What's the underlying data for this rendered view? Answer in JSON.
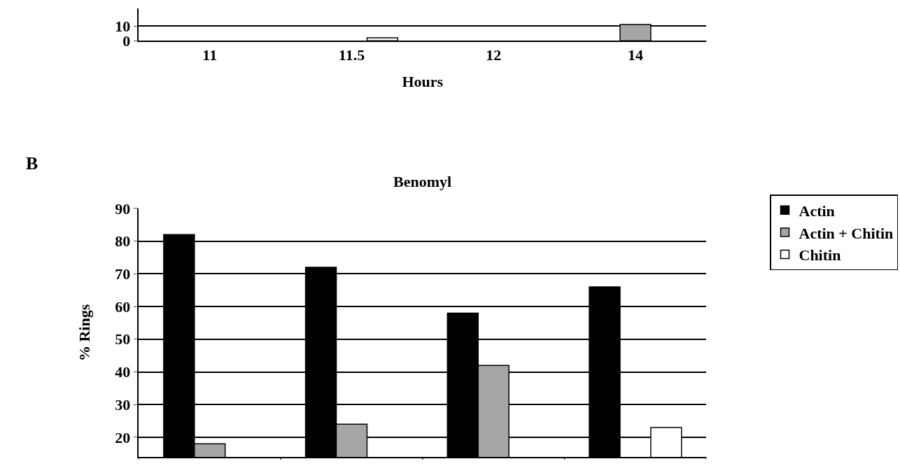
{
  "chart_data": [
    {
      "type": "bar",
      "xlabel": "Hours",
      "categories": [
        "11",
        "11.5",
        "12",
        "14"
      ],
      "ylim": [
        0,
        22
      ],
      "yticks": [
        0,
        10
      ],
      "grid": "y",
      "legend": false,
      "series": [
        {
          "color": "#000000",
          "values": [
            null,
            null,
            null,
            null
          ]
        },
        {
          "color": "#a6a6a6",
          "values": [
            null,
            null,
            null,
            11
          ]
        },
        {
          "color": "#ffffff",
          "values": [
            null,
            2,
            null,
            null
          ]
        }
      ]
    },
    {
      "type": "bar",
      "title": "Benomyl",
      "ylabel": "% Rings",
      "annotations": [
        "B"
      ],
      "categories": [
        null,
        null,
        null,
        null
      ],
      "ylim": [
        14,
        90
      ],
      "yticks": [
        20,
        30,
        40,
        50,
        60,
        70,
        80,
        90
      ],
      "grid": "y",
      "legend": "top right",
      "tick_labels": "y",
      "series": [
        {
          "name": "Actin",
          "color": "#000000",
          "values": [
            82,
            72,
            58,
            66
          ]
        },
        {
          "name": "Actin + Chitin",
          "color": "#a6a6a6",
          "values": [
            18,
            24,
            42,
            null
          ]
        },
        {
          "name": "Chitin",
          "color": "#ffffff",
          "values": [
            null,
            null,
            null,
            23
          ]
        }
      ]
    }
  ]
}
